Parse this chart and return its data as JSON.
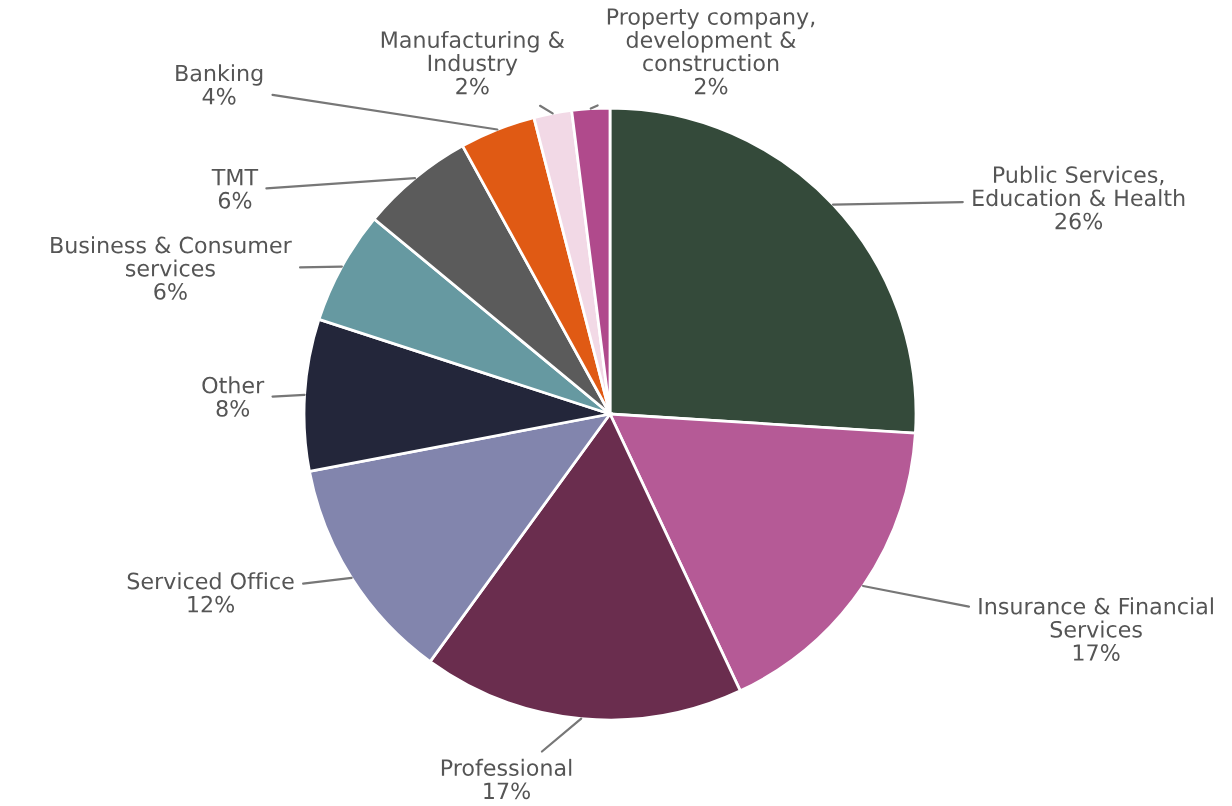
{
  "chart_data": {
    "type": "pie",
    "categories": [
      "Public Services,\nEducation & Health",
      "Insurance & Financial\nServices",
      "Professional",
      "Serviced Office",
      "Other",
      "Business & Consumer\nservices",
      "TMT",
      "Banking",
      "Manufacturing &\nIndustry",
      "Property company,\ndevelopment &\nconstruction"
    ],
    "values": [
      26,
      17,
      17,
      12,
      8,
      6,
      6,
      4,
      2,
      2
    ],
    "colors": [
      "#344a3a",
      "#b55a96",
      "#6a2d4e",
      "#8285ad",
      "#23263a",
      "#6699a1",
      "#5b5b5b",
      "#e05a14",
      "#f2d9e6",
      "#b04a8c"
    ],
    "value_labels": [
      "26%",
      "17%",
      "17%",
      "12%",
      "8%",
      "6%",
      "6%",
      "4%",
      "2%",
      "2%"
    ]
  }
}
